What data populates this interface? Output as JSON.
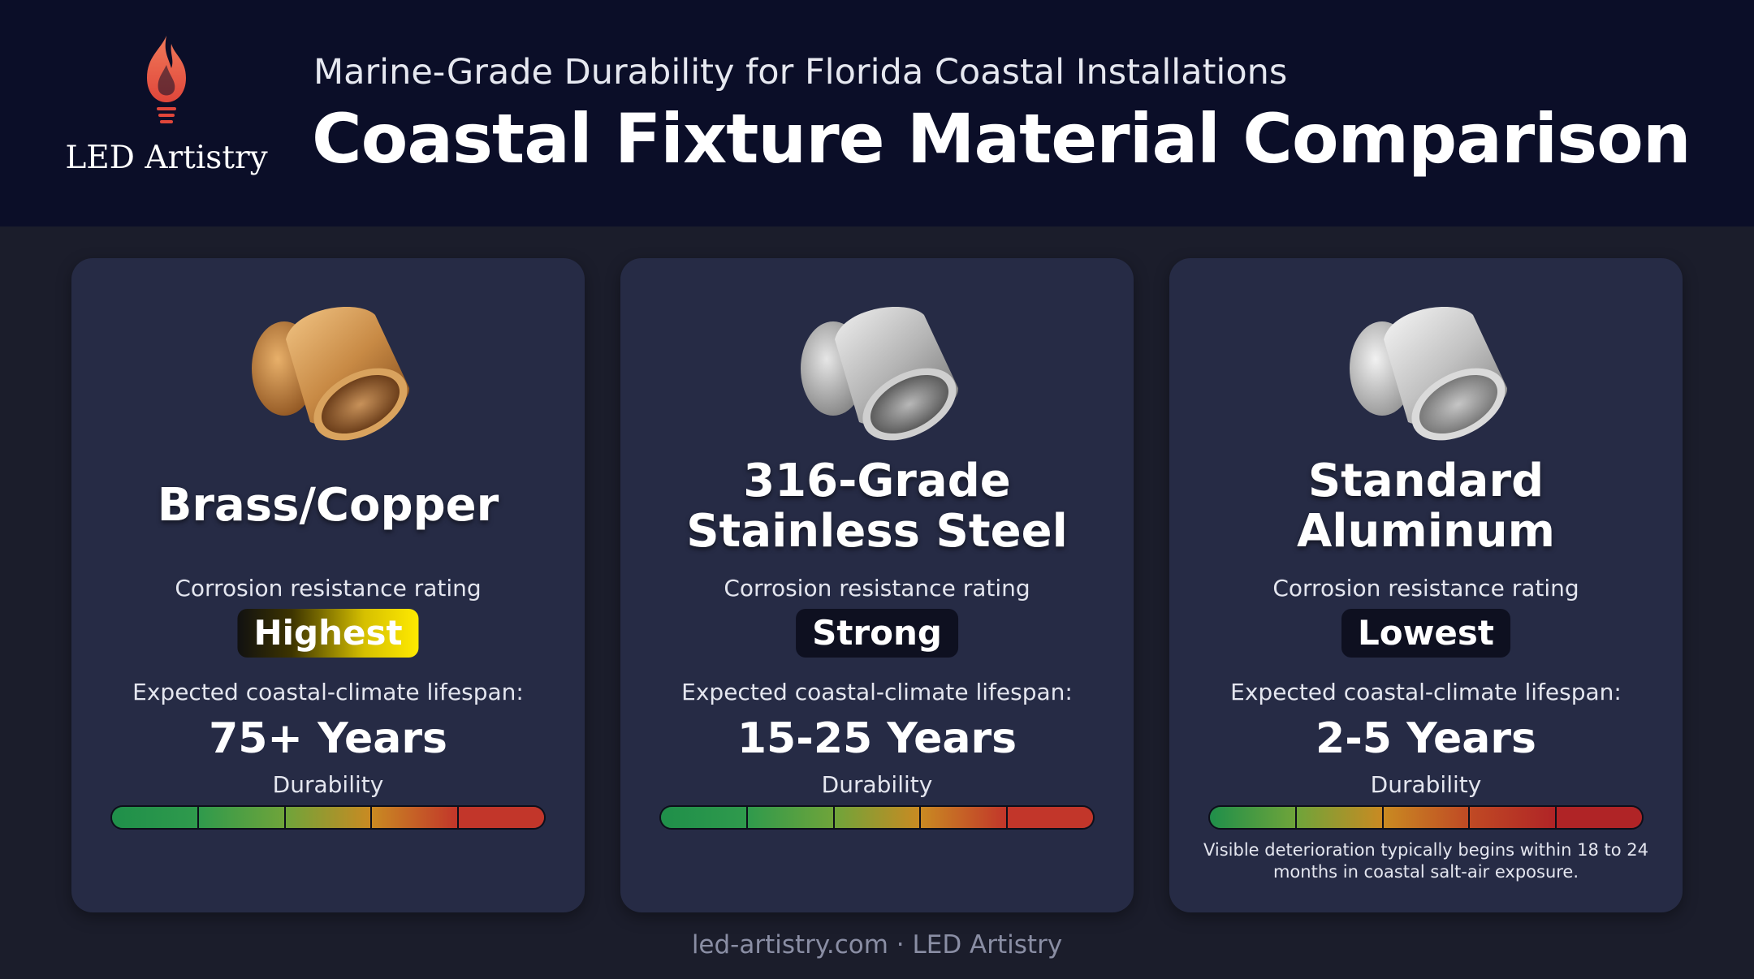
{
  "header": {
    "logo_text": "LED Artistry",
    "logo_icon": "flame-bulb-icon",
    "subtitle": "Marine-Grade Durability for Florida Coastal Installations",
    "title": "Coastal Fixture Material Comparison"
  },
  "cards": [
    {
      "material": "Brass/Copper",
      "icon": "brass-fixture-icon",
      "rating_label": "Corrosion resistance rating",
      "rating": "Highest",
      "lifespan_label": "Expected coastal-climate lifespan:",
      "lifespan": "75+ Years",
      "durability_label": "Durability",
      "durability_colors": [
        "#1f8f4a",
        "#2f9a4c",
        "#6fa43a",
        "#c98a22",
        "#c2362a"
      ]
    },
    {
      "material": "316-Grade Stainless Steel",
      "icon": "stainless-fixture-icon",
      "rating_label": "Corrosion resistance rating",
      "rating": "Strong",
      "lifespan_label": "Expected coastal-climate lifespan:",
      "lifespan": "15-25 Years",
      "durability_label": "Durability",
      "durability_colors": [
        "#1f8f4a",
        "#2f9a4c",
        "#6fa43a",
        "#c98a22",
        "#c2362a"
      ]
    },
    {
      "material": "Standard Aluminum",
      "icon": "aluminum-fixture-icon",
      "rating_label": "Corrosion resistance rating",
      "rating": "Lowest",
      "lifespan_label": "Expected coastal-climate lifespan:",
      "lifespan": "2-5 Years",
      "durability_label": "Durability",
      "durability_colors": [
        "#1f8f4a",
        "#6fa43a",
        "#c98a22",
        "#c04a24",
        "#b02426"
      ],
      "note": "Visible deterioration typically begins within 18 to 24 months in coastal salt-air exposure."
    }
  ],
  "footer": "led-artistry.com · LED Artistry"
}
